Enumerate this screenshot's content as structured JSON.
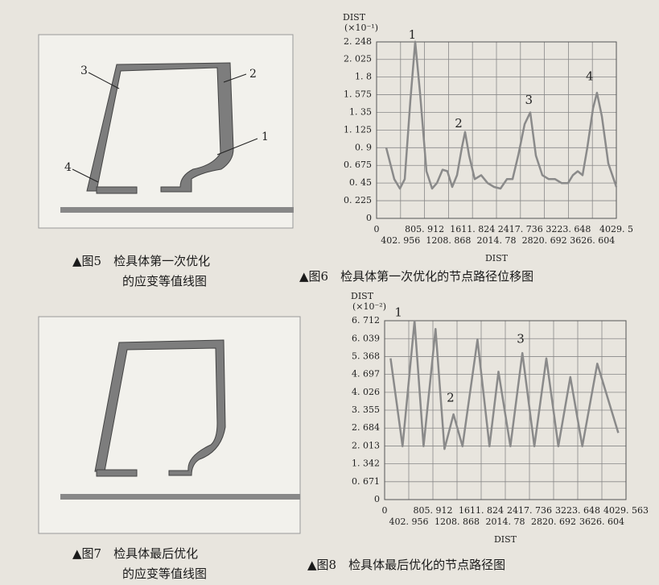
{
  "fig5": {
    "caption_line1": "▲图5　检具体第一次优化",
    "caption_line2": "的应变等值线图",
    "callouts": [
      "1",
      "2",
      "3",
      "4"
    ]
  },
  "fig6_caption": "▲图6　检具体第一次优化的节点路径位移图",
  "fig7": {
    "caption_line1": "▲图7　检具体最后优化",
    "caption_line2": "的应变等值线图"
  },
  "fig8_caption": "▲图8　检具体最后优化的节点路径图",
  "chart_data": [
    {
      "type": "line",
      "y_label": "DIST",
      "y_unit": "(×10⁻¹)",
      "x_label": "DIST",
      "x": [
        162,
        297,
        392,
        473,
        568,
        649,
        730,
        838,
        933,
        1014,
        1109,
        1190,
        1271,
        1352,
        1433,
        1487,
        1555,
        1650,
        1758,
        1866,
        1974,
        2082,
        2190,
        2285,
        2380,
        2488,
        2582,
        2677,
        2785,
        2893,
        3001,
        3109,
        3218,
        3299,
        3380,
        3461,
        3542,
        3637,
        3704,
        3786,
        3894,
        4029
      ],
      "series": [
        {
          "color": "#8a8a8a",
          "values": [
            0.9,
            0.5,
            0.38,
            0.5,
            1.5,
            2.25,
            1.6,
            0.6,
            0.38,
            0.45,
            0.62,
            0.6,
            0.4,
            0.55,
            0.9,
            1.1,
            0.8,
            0.5,
            0.55,
            0.45,
            0.4,
            0.38,
            0.5,
            0.5,
            0.8,
            1.2,
            1.35,
            0.8,
            0.55,
            0.5,
            0.5,
            0.45,
            0.45,
            0.55,
            0.6,
            0.55,
            0.9,
            1.4,
            1.6,
            1.3,
            0.7,
            0.4
          ]
        }
      ],
      "xlim": [
        0,
        4029.5
      ],
      "ylim": [
        0,
        2.248
      ],
      "xticks": [
        0,
        {
          "value": 402.956,
          "label": "402. 956"
        },
        {
          "value": 805.912,
          "label": "805. 912"
        },
        {
          "value": 1208.868,
          "label": "1208. 868"
        },
        {
          "value": 1611.824,
          "label": "1611. 824"
        },
        {
          "value": 2014.78,
          "label": "2014. 78"
        },
        {
          "value": 2417.736,
          "label": "2417. 736"
        },
        {
          "value": 2820.692,
          "label": "2820. 692"
        },
        {
          "value": 3223.648,
          "label": "3223. 648"
        },
        {
          "value": 3626.604,
          "label": "3626. 604"
        },
        {
          "value": 4029.5,
          "label": "4029. 5"
        }
      ],
      "yticks": [
        0,
        {
          "value": 0.225,
          "label": "0. 225"
        },
        {
          "value": 0.45,
          "label": "0. 45"
        },
        {
          "value": 0.675,
          "label": "0. 675"
        },
        {
          "value": 0.9,
          "label": "0. 9"
        },
        {
          "value": 1.125,
          "label": "1. 125"
        },
        {
          "value": 1.35,
          "label": "1. 35"
        },
        {
          "value": 1.575,
          "label": "1. 575"
        },
        {
          "value": 1.8,
          "label": "1. 8"
        },
        {
          "value": 2.025,
          "label": "2. 025"
        },
        {
          "value": 2.248,
          "label": "2. 248"
        }
      ],
      "grid": true,
      "annotations": [
        {
          "text": "1",
          "x": 600,
          "y": 2.33
        },
        {
          "text": "2",
          "x": 1380,
          "y": 1.2
        },
        {
          "text": "3",
          "x": 2560,
          "y": 1.5
        },
        {
          "text": "4",
          "x": 3580,
          "y": 1.8
        }
      ]
    },
    {
      "type": "line",
      "y_label": "DIST",
      "y_unit": "(×10⁻²)",
      "x_label": "DIST",
      "x": [
        100,
        300,
        500,
        650,
        850,
        1000,
        1150,
        1300,
        1550,
        1750,
        1900,
        2100,
        2300,
        2500,
        2700,
        2900,
        3100,
        3300,
        3550,
        3900
      ],
      "series": [
        {
          "color": "#8a8a8a",
          "values": [
            5.3,
            2.0,
            6.7,
            2.0,
            6.4,
            1.9,
            3.2,
            2.0,
            6.0,
            2.0,
            4.8,
            2.0,
            5.5,
            2.0,
            5.3,
            2.0,
            4.6,
            2.0,
            5.1,
            2.5
          ]
        }
      ],
      "xlim": [
        0,
        4029.563
      ],
      "ylim": [
        0,
        6.712
      ],
      "xticks": [
        0,
        {
          "value": 402.956,
          "label": "402. 956"
        },
        {
          "value": 805.912,
          "label": "805. 912"
        },
        {
          "value": 1208.868,
          "label": "1208. 868"
        },
        {
          "value": 1611.824,
          "label": "1611. 824"
        },
        {
          "value": 2014.78,
          "label": "2014. 78"
        },
        {
          "value": 2417.736,
          "label": "2417. 736"
        },
        {
          "value": 2820.692,
          "label": "2820. 692"
        },
        {
          "value": 3223.648,
          "label": "3223. 648"
        },
        {
          "value": 3626.604,
          "label": "3626. 604"
        },
        {
          "value": 4029.563,
          "label": "4029. 563"
        }
      ],
      "yticks": [
        0,
        {
          "value": 0.671,
          "label": "0. 671"
        },
        {
          "value": 1.342,
          "label": "1. 342"
        },
        {
          "value": 2.013,
          "label": "2. 013"
        },
        {
          "value": 2.684,
          "label": "2. 684"
        },
        {
          "value": 3.355,
          "label": "3. 355"
        },
        {
          "value": 4.026,
          "label": "4. 026"
        },
        {
          "value": 4.697,
          "label": "4. 697"
        },
        {
          "value": 5.368,
          "label": "5. 368"
        },
        {
          "value": 6.039,
          "label": "6. 039"
        },
        {
          "value": 6.712,
          "label": "6. 712"
        }
      ],
      "grid": true,
      "annotations": [
        {
          "text": "1",
          "x": 230,
          "y": 7.0
        },
        {
          "text": "2",
          "x": 1100,
          "y": 3.8
        },
        {
          "text": "3",
          "x": 2270,
          "y": 6.0
        }
      ]
    }
  ]
}
